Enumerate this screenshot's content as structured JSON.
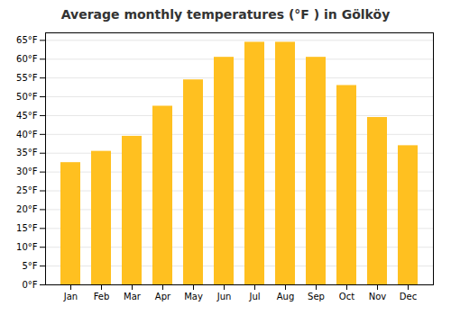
{
  "chart_data": {
    "type": "bar",
    "title": "Average monthly temperatures (°F ) in Gölköy",
    "categories": [
      "Jan",
      "Feb",
      "Mar",
      "Apr",
      "May",
      "Jun",
      "Jul",
      "Aug",
      "Sep",
      "Oct",
      "Nov",
      "Dec"
    ],
    "values": [
      32.5,
      35.5,
      39.5,
      47.5,
      54.5,
      60.5,
      64.5,
      64.5,
      60.5,
      53.0,
      44.5,
      37.0
    ],
    "color": "#FFC020",
    "ylim": [
      0,
      67
    ],
    "yticks": [
      {
        "value": 0,
        "label": "0°F"
      },
      {
        "value": 5,
        "label": "5°F"
      },
      {
        "value": 10,
        "label": "10°F"
      },
      {
        "value": 15,
        "label": "15°F"
      },
      {
        "value": 20,
        "label": "20°F"
      },
      {
        "value": 25,
        "label": "25°F"
      },
      {
        "value": 30,
        "label": "30°F"
      },
      {
        "value": 35,
        "label": "35°F"
      },
      {
        "value": 40,
        "label": "40°F"
      },
      {
        "value": 45,
        "label": "45°F"
      },
      {
        "value": 50,
        "label": "50°F"
      },
      {
        "value": 55,
        "label": "55°F"
      },
      {
        "value": 60,
        "label": "60°F"
      },
      {
        "value": 65,
        "label": "65°F"
      }
    ],
    "grid": true
  }
}
